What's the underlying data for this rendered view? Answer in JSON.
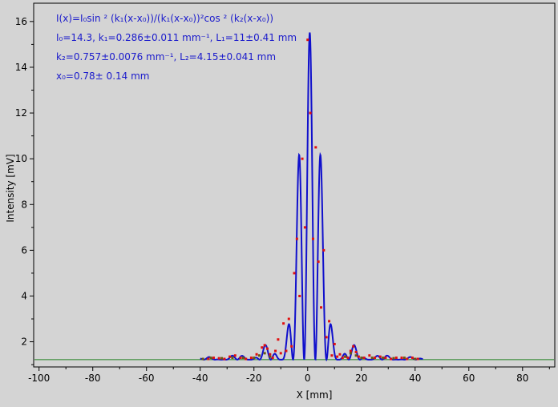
{
  "chart_data": {
    "type": "scatter",
    "title": "",
    "xlabel": "X [mm]",
    "ylabel": "Intensity [mV]",
    "xlim": [
      -102,
      92
    ],
    "ylim": [
      0.9,
      16.8
    ],
    "xticks": [
      -100,
      -80,
      -60,
      -40,
      -20,
      0,
      20,
      40,
      60,
      80
    ],
    "yticks": [
      2,
      4,
      6,
      8,
      10,
      12,
      14,
      16
    ],
    "grid": false,
    "legend": "none",
    "annotation_lines": [
      "I(x)=I₀sin ² (k₁(x-x₀))/(k₁(x-x₀))²cos ² (k₂(x-x₀))",
      "I₀=14.3,  k₁=0.286±0.011 mm⁻¹,   L₁=11±0.41 mm",
      "k₂=0.757±0.0076 mm⁻¹,   L₂=4.15±0.041 mm",
      "x₀=0.78±  0.14 mm"
    ],
    "fit": {
      "I0": 14.3,
      "k1": 0.286,
      "k2": 0.757,
      "x0": 0.78,
      "background": 1.22,
      "x_range": [
        -40,
        43
      ],
      "color": "#1010cc"
    },
    "baseline": {
      "y": 1.22,
      "color": "#208020"
    },
    "series": [
      {
        "color": "#e01010",
        "x": [
          -37,
          -35,
          -33,
          -31,
          -29,
          -27,
          -25,
          -23,
          -21,
          -19,
          -17,
          -16,
          -15,
          -14,
          -13,
          -12,
          -11,
          -10,
          -9,
          -8,
          -7,
          -6,
          -5,
          -4,
          -3,
          -2,
          -1,
          0,
          1,
          2,
          3,
          4,
          5,
          6,
          7,
          8,
          9,
          10,
          11,
          12,
          13,
          14,
          15,
          16,
          17,
          18,
          19,
          21,
          23,
          25,
          27,
          29,
          31,
          33,
          35,
          37,
          39,
          41
        ],
        "y": [
          1.25,
          1.3,
          1.28,
          1.25,
          1.35,
          1.4,
          1.3,
          1.25,
          1.3,
          1.45,
          1.75,
          1.85,
          1.7,
          1.45,
          1.3,
          1.6,
          2.1,
          1.5,
          2.8,
          1.6,
          3.0,
          1.8,
          5.0,
          6.5,
          4.0,
          10.0,
          7.0,
          15.2,
          12.0,
          6.5,
          10.5,
          5.5,
          3.5,
          6.0,
          2.2,
          2.9,
          1.4,
          1.9,
          1.35,
          1.45,
          1.3,
          1.35,
          1.3,
          1.6,
          1.8,
          1.55,
          1.35,
          1.3,
          1.4,
          1.3,
          1.35,
          1.3,
          1.25,
          1.3,
          1.3,
          1.25,
          1.3,
          1.25
        ]
      },
      {
        "color": "#6a5a10",
        "x": [
          -39,
          -36,
          -32,
          -28,
          -24,
          -20,
          -18,
          -16,
          -14,
          14,
          16,
          18,
          20,
          24,
          28,
          32,
          36,
          40
        ],
        "y": [
          1.25,
          1.3,
          1.28,
          1.3,
          1.3,
          1.3,
          1.4,
          1.5,
          1.35,
          1.35,
          1.5,
          1.4,
          1.3,
          1.3,
          1.3,
          1.28,
          1.3,
          1.25
        ]
      }
    ]
  }
}
